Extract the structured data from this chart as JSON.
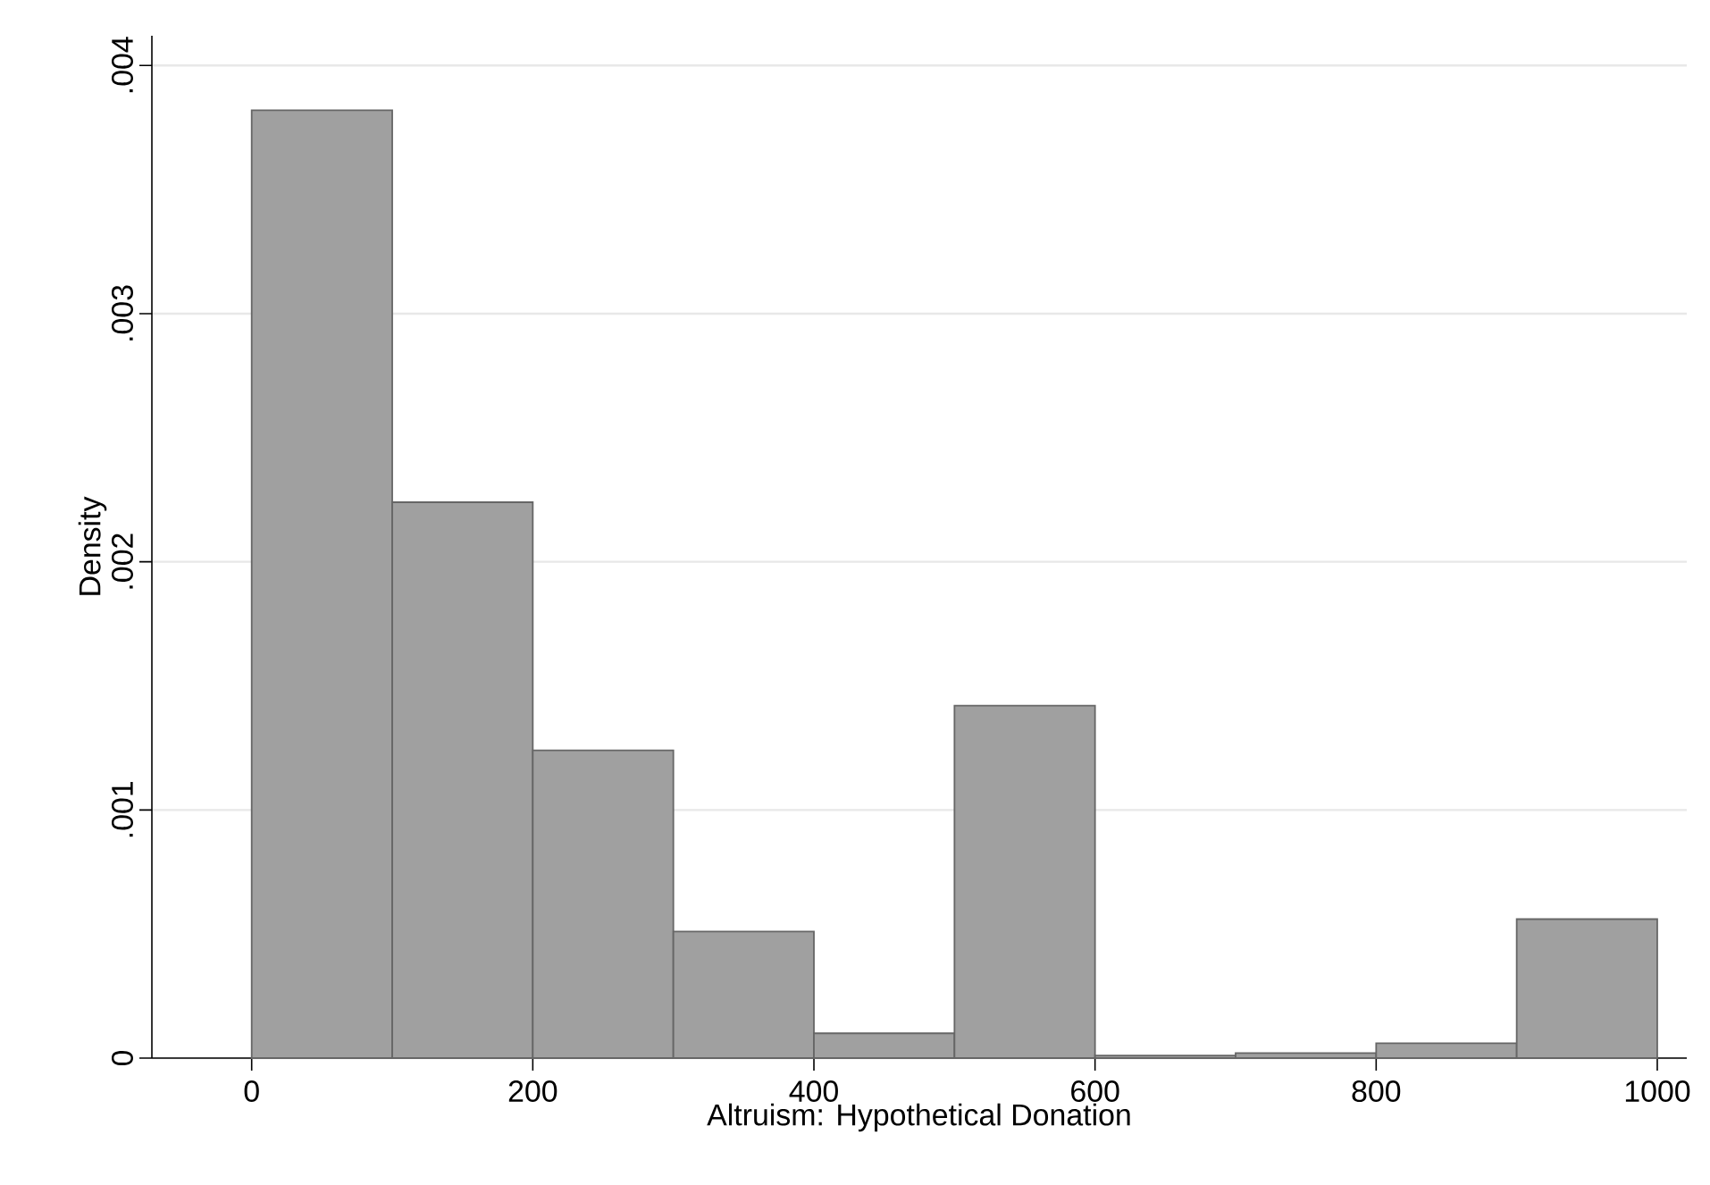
{
  "chart_data": {
    "type": "histogram",
    "xlabel": "Altruism: Hypothetical Donation",
    "ylabel": "Density",
    "bins": [
      0,
      100,
      200,
      300,
      400,
      500,
      600,
      700,
      800,
      900,
      1000
    ],
    "values": [
      0.00382,
      0.00224,
      0.00124,
      0.00051,
      0.0001,
      0.00142,
      1e-05,
      2e-05,
      6e-05,
      0.00056
    ],
    "color": "#a0a0a0",
    "xlim": [
      -71,
      1021
    ],
    "xticks": [
      0,
      200,
      400,
      600,
      800,
      1000
    ],
    "ylim": [
      0,
      0.00412
    ],
    "yticks": [
      0,
      {
        "value": 0.001,
        "label": ".001"
      },
      {
        "value": 0.002,
        "label": ".002"
      },
      {
        "value": 0.003,
        "label": ".003"
      },
      {
        "value": 0.004,
        "label": ".004"
      }
    ],
    "grid": "y"
  }
}
